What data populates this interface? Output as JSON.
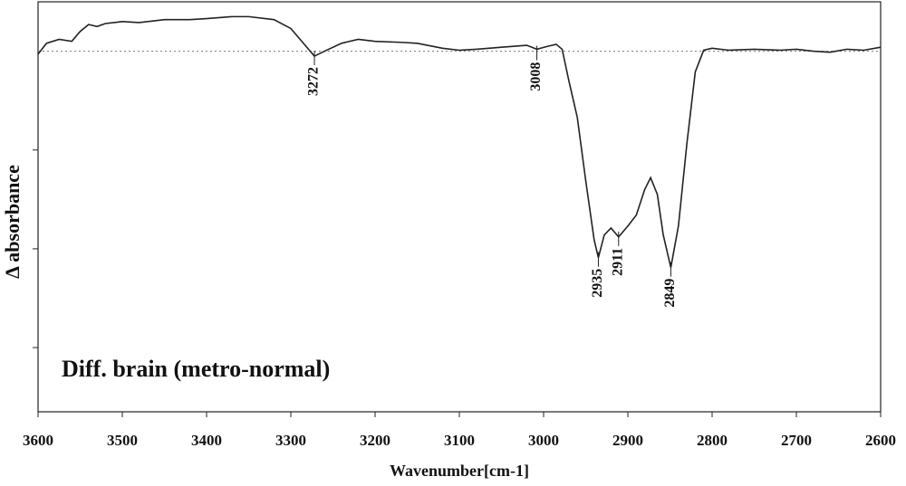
{
  "chart_data": {
    "type": "line",
    "annotation": "Diff. brain (metro-normal)",
    "x_label": "Wavenumber[cm-1]",
    "y_label": "Δ absorbance",
    "xlim": [
      3600,
      2600
    ],
    "xticks": [
      3600,
      3500,
      3400,
      3300,
      3200,
      3100,
      3000,
      2900,
      2800,
      2700,
      2600
    ],
    "ylim": [
      -3.65,
      0.5
    ],
    "yticks": [
      -1,
      -2,
      -3
    ],
    "baseline": 0,
    "peak_labels": [
      3272,
      3008,
      2935,
      2911,
      2849
    ],
    "color": "#222222",
    "x": [
      3600,
      3590,
      3575,
      3560,
      3550,
      3540,
      3530,
      3520,
      3500,
      3480,
      3450,
      3420,
      3400,
      3370,
      3350,
      3320,
      3300,
      3285,
      3272,
      3260,
      3240,
      3220,
      3200,
      3170,
      3150,
      3120,
      3100,
      3080,
      3050,
      3020,
      3008,
      2995,
      2985,
      2978,
      2970,
      2960,
      2950,
      2940,
      2935,
      2928,
      2920,
      2911,
      2900,
      2890,
      2880,
      2873,
      2865,
      2858,
      2849,
      2840,
      2830,
      2820,
      2810,
      2800,
      2780,
      2750,
      2720,
      2700,
      2680,
      2660,
      2640,
      2620,
      2600
    ],
    "values": [
      -0.03,
      0.08,
      0.12,
      0.1,
      0.2,
      0.27,
      0.25,
      0.28,
      0.3,
      0.29,
      0.32,
      0.32,
      0.33,
      0.35,
      0.35,
      0.32,
      0.23,
      0.08,
      -0.05,
      0,
      0.08,
      0.12,
      0.1,
      0.09,
      0.08,
      0.03,
      0.01,
      0.02,
      0.04,
      0.06,
      0.02,
      0.05,
      0.07,
      0.02,
      -0.3,
      -0.67,
      -1.31,
      -1.91,
      -2.09,
      -1.86,
      -1.79,
      -1.88,
      -1.77,
      -1.66,
      -1.4,
      -1.28,
      -1.45,
      -1.86,
      -2.19,
      -1.77,
      -0.94,
      -0.21,
      0.01,
      0.03,
      0.01,
      0.02,
      0.01,
      0.02,
      0,
      -0.01,
      0.02,
      0.01,
      0.04
    ]
  }
}
